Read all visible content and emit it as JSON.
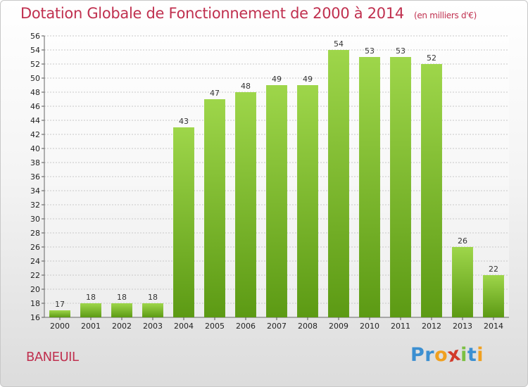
{
  "title": {
    "main": "Dotation Globale de Fonctionnement de 2000 à 2014",
    "unit": "(en milliers d'€)"
  },
  "commune": "BANEUIL",
  "logo": {
    "letters": [
      "P",
      "r",
      "o",
      "x",
      "i",
      "t",
      "i"
    ],
    "colors": [
      "#3b8fd1",
      "#3b8fd1",
      "#f0a020",
      "#d23a2a",
      "#7bc043",
      "#3b8fd1",
      "#f0a020"
    ]
  },
  "colors": {
    "bar_top": "#9ed64a",
    "bar_bottom": "#5c9a14",
    "grid": "#c8c8c8",
    "title": "#c0304f"
  },
  "chart_data": {
    "type": "bar",
    "title": "Dotation Globale de Fonctionnement de 2000 à 2014",
    "unit": "(en milliers d'€)",
    "categories": [
      "2000",
      "2001",
      "2002",
      "2003",
      "2004",
      "2005",
      "2006",
      "2007",
      "2008",
      "2009",
      "2010",
      "2011",
      "2012",
      "2013",
      "2014"
    ],
    "values": [
      17,
      18,
      18,
      18,
      43,
      47,
      48,
      49,
      49,
      54,
      53,
      53,
      52,
      26,
      22
    ],
    "ylim": [
      16,
      56
    ],
    "yticks": [
      16,
      18,
      20,
      22,
      24,
      26,
      28,
      30,
      32,
      34,
      36,
      38,
      40,
      42,
      44,
      46,
      48,
      50,
      52,
      54,
      56
    ],
    "grid": true
  }
}
